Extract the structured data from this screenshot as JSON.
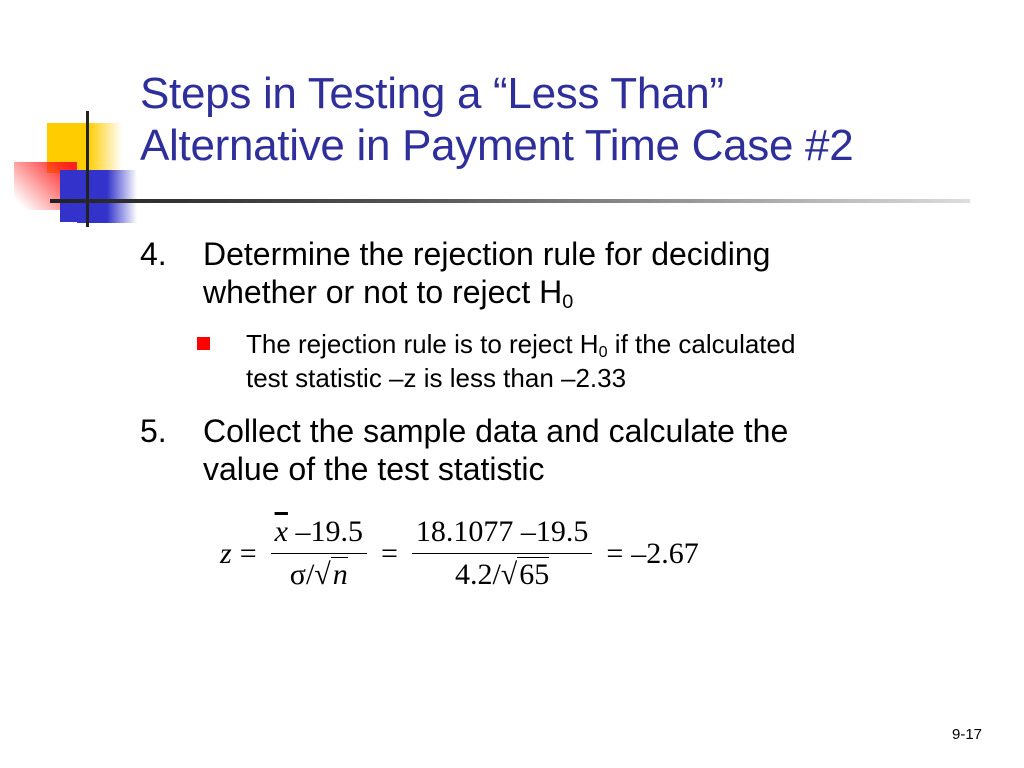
{
  "title": {
    "line1": "Steps in Testing a “Less Than”",
    "line2": "Alternative in Payment Time Case #2"
  },
  "logo": {
    "colors": [
      "#ffcc00",
      "#ff2020",
      "#3333cc",
      "#222222"
    ]
  },
  "items": [
    {
      "number": "4.",
      "text_line1": "Determine the rejection rule for deciding",
      "text_line2": "whether or not to reject H",
      "subscript": "0"
    },
    {
      "number": "5.",
      "text_line1": "Collect the sample data and calculate the",
      "text_line2": "value of the test statistic"
    }
  ],
  "subbullet": {
    "text_a": "The rejection rule is to reject H",
    "subscript": "0",
    "text_b": " if the calculated",
    "text_line2": "test statistic –z is less than –2.33",
    "bullet_color": "#ff0000"
  },
  "formula": {
    "lhs": "z",
    "eq": "=",
    "num1_var": "x",
    "num1_rest": " –19.5",
    "den1_sigma": "σ",
    "den1_n": "n",
    "num2": "18.1077 –19.5",
    "den2_a": "4.2",
    "den2_b": "65",
    "result": "–2.67",
    "slash": "/",
    "root": "√"
  },
  "page_number": "9-17"
}
